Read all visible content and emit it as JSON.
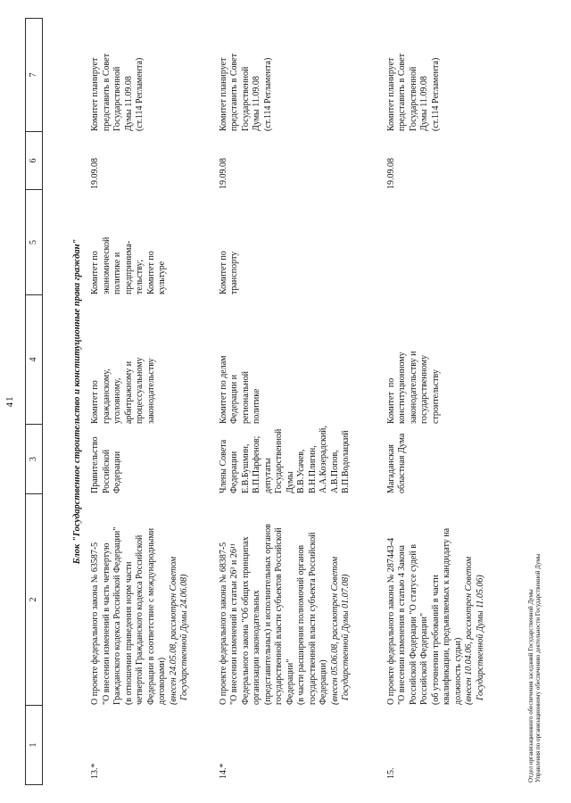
{
  "page": {
    "number": "41"
  },
  "table": {
    "header_numbers": {
      "c1": "1",
      "c2": "2",
      "c3": "3",
      "c4": "4",
      "c5": "5",
      "c6": "6",
      "c7": "7"
    },
    "section_title": "Блок \"Государственное строительство и конституционные права граждан\"",
    "rows": [
      {
        "num": "13.*",
        "bill": "О проекте федерального закона № 63587-5\n\"О внесении изменений в часть четвертую\nГражданского кодекса Российской Федерации\"\n(в отношении приведения норм части\nчетвертой Гражданского кодекса Российской\nФедерации в соответствие с международными\nдоговорами)",
        "note": "(внесен 24.05.08, рассмотрен Советом\n  Государственной Думы 24.06.08)",
        "initiator": "Правительство\nРоссийской\nФедерации",
        "responsible": "Комитет по\nгражданскому,\nуголовному,\nарбитражному и\nпроцессуальному\nзаконодательству",
        "co_committee": "Комитет по\nэкономической\nполитике и\nпредпринима-\nтельству;\nКомитет по\nкультуре",
        "date": "19.09.08",
        "plan": "Комитет планирует\nпредставить в Совет\nГосударственной\nДумы 11.09.08\n(ст.114 Регламента)"
      },
      {
        "num": "14.*",
        "bill": "О проекте федерального закона № 68387-5\n\"О внесении изменений в статьи 26³ и 26¹¹\nФедерального закона \"Об общих принципах\nорганизации законодательных\n(представительных) и исполнительных органов\nгосударственной власти субъектов Российской\nФедерации\"\n(в части расширения полномочий органов\nгосударственной власти субъекта Российской\nФедерации)",
        "note": "(внесен 05.06.08, рассмотрен Советом\n  Государственной Думы 01.07.08)",
        "initiator": "Члены Совета\nФедерации\nЕ.В.Бушмин,\nВ.П.Парфенов;\nдепутаты\nГосударственной\nДумы\nВ.В.Усачев,\nВ.Н.Плигин,\nА.А.Козерадский,\nА.В.Попов,\nВ.П.Водолацкий",
        "responsible": "Комитет по делам\nФедерации и\nрегиональной\nполитике",
        "co_committee": "Комитет по\nтранспорту",
        "date": "19.09.08",
        "plan": "Комитет планирует\nпредставить в Совет\nГосударственной\nДумы 11.09.08\n(ст.114 Регламента)"
      },
      {
        "num": "15.",
        "bill": "О проекте федерального закона № 287443-4\n\"О внесении изменения в статью 4 Закона\nРоссийской Федерации \"О статусе судей в\nРоссийской Федерации\"\n(об уточнении требований в части\nквалификации, предъявляемых к кандидату на\nдолжность судьи)",
        "note": "(внесен 10.04.06, рассмотрен Советом\n  Государственной Думы 11.05.06)",
        "initiator": "Магаданская\nобластная Дума",
        "responsible": "Комитет  по\nконституционному\nзаконодательству и\nгосударственному\nстроительству",
        "co_committee": "",
        "date": "19.09.08",
        "plan": "Комитет планирует\nпредставить в Совет\nГосударственной\nДумы 11.09.08\n(ст.114 Регламента)"
      }
    ]
  },
  "footer": {
    "line1": "Отдел организационного обеспечения заседаний Государственной Думы",
    "line2": "Управления по организационному обеспечению деятельности Государственной Думы"
  }
}
